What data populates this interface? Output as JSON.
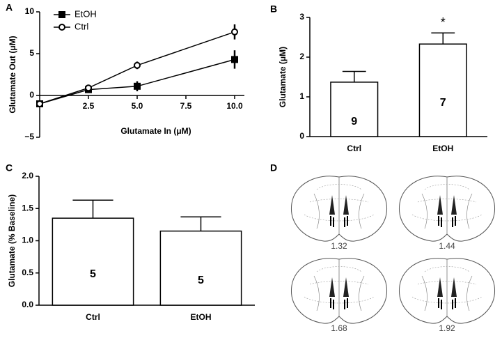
{
  "chart_data": [
    {
      "type": "line",
      "panel": "A",
      "x_label": "Glutamate In (μM)",
      "y_label": "Glutamate Out (μM)",
      "x": [
        0,
        2.5,
        5,
        10
      ],
      "series": [
        {
          "name": "EtOH",
          "color": "#000000",
          "marker": "square",
          "marker_fill": "#000000",
          "values": [
            -1,
            0.7,
            1.1,
            4.3
          ],
          "errors": [
            0,
            0.3,
            0.6,
            1.1
          ]
        },
        {
          "name": "Ctrl",
          "color": "#000000",
          "marker": "circle",
          "marker_fill": "#ffffff",
          "values": [
            -1,
            0.9,
            3.6,
            7.6
          ],
          "errors": [
            0,
            0.3,
            0.45,
            0.9
          ]
        }
      ],
      "xlim": [
        0,
        10.5
      ],
      "xticks": [
        2.5,
        {
          "value": 5,
          "label": "5.0"
        },
        7.5,
        {
          "value": 10,
          "label": "10.0"
        }
      ],
      "ylim": [
        -5,
        10
      ],
      "yticks": [
        {
          "value": -5,
          "label": "−5"
        },
        0,
        5,
        10
      ],
      "legend": "upper left"
    },
    {
      "type": "bar",
      "panel": "B",
      "y_label": "Glutamate (μM)",
      "categories": [
        "Ctrl",
        "EtOH"
      ],
      "values": [
        1.37,
        2.33
      ],
      "errors": [
        0.27,
        0.28
      ],
      "bar_labels": [
        "9",
        "7"
      ],
      "color": "#ffffff",
      "annotations": [
        null,
        "*"
      ],
      "ylim": [
        0,
        3
      ],
      "yticks": [
        0,
        1,
        2,
        3
      ]
    },
    {
      "type": "bar",
      "panel": "C",
      "y_label": "Glutamate (% Baseline)",
      "categories": [
        "Ctrl",
        "EtOH"
      ],
      "values": [
        1.35,
        1.15
      ],
      "errors": [
        0.28,
        0.22
      ],
      "bar_labels": [
        "5",
        "5"
      ],
      "color": "#ffffff",
      "ylim": [
        0,
        2
      ],
      "yticks": [
        {
          "value": 0,
          "label": "0.0"
        },
        {
          "value": 0.5,
          "label": "0.5"
        },
        {
          "value": 1,
          "label": "1.0"
        },
        {
          "value": 1.5,
          "label": "1.5"
        },
        {
          "value": 2,
          "label": "2.0"
        }
      ]
    }
  ],
  "diagram": {
    "panel": "D",
    "labels": [
      "1.32",
      "1.44",
      "1.68",
      "1.92"
    ]
  }
}
